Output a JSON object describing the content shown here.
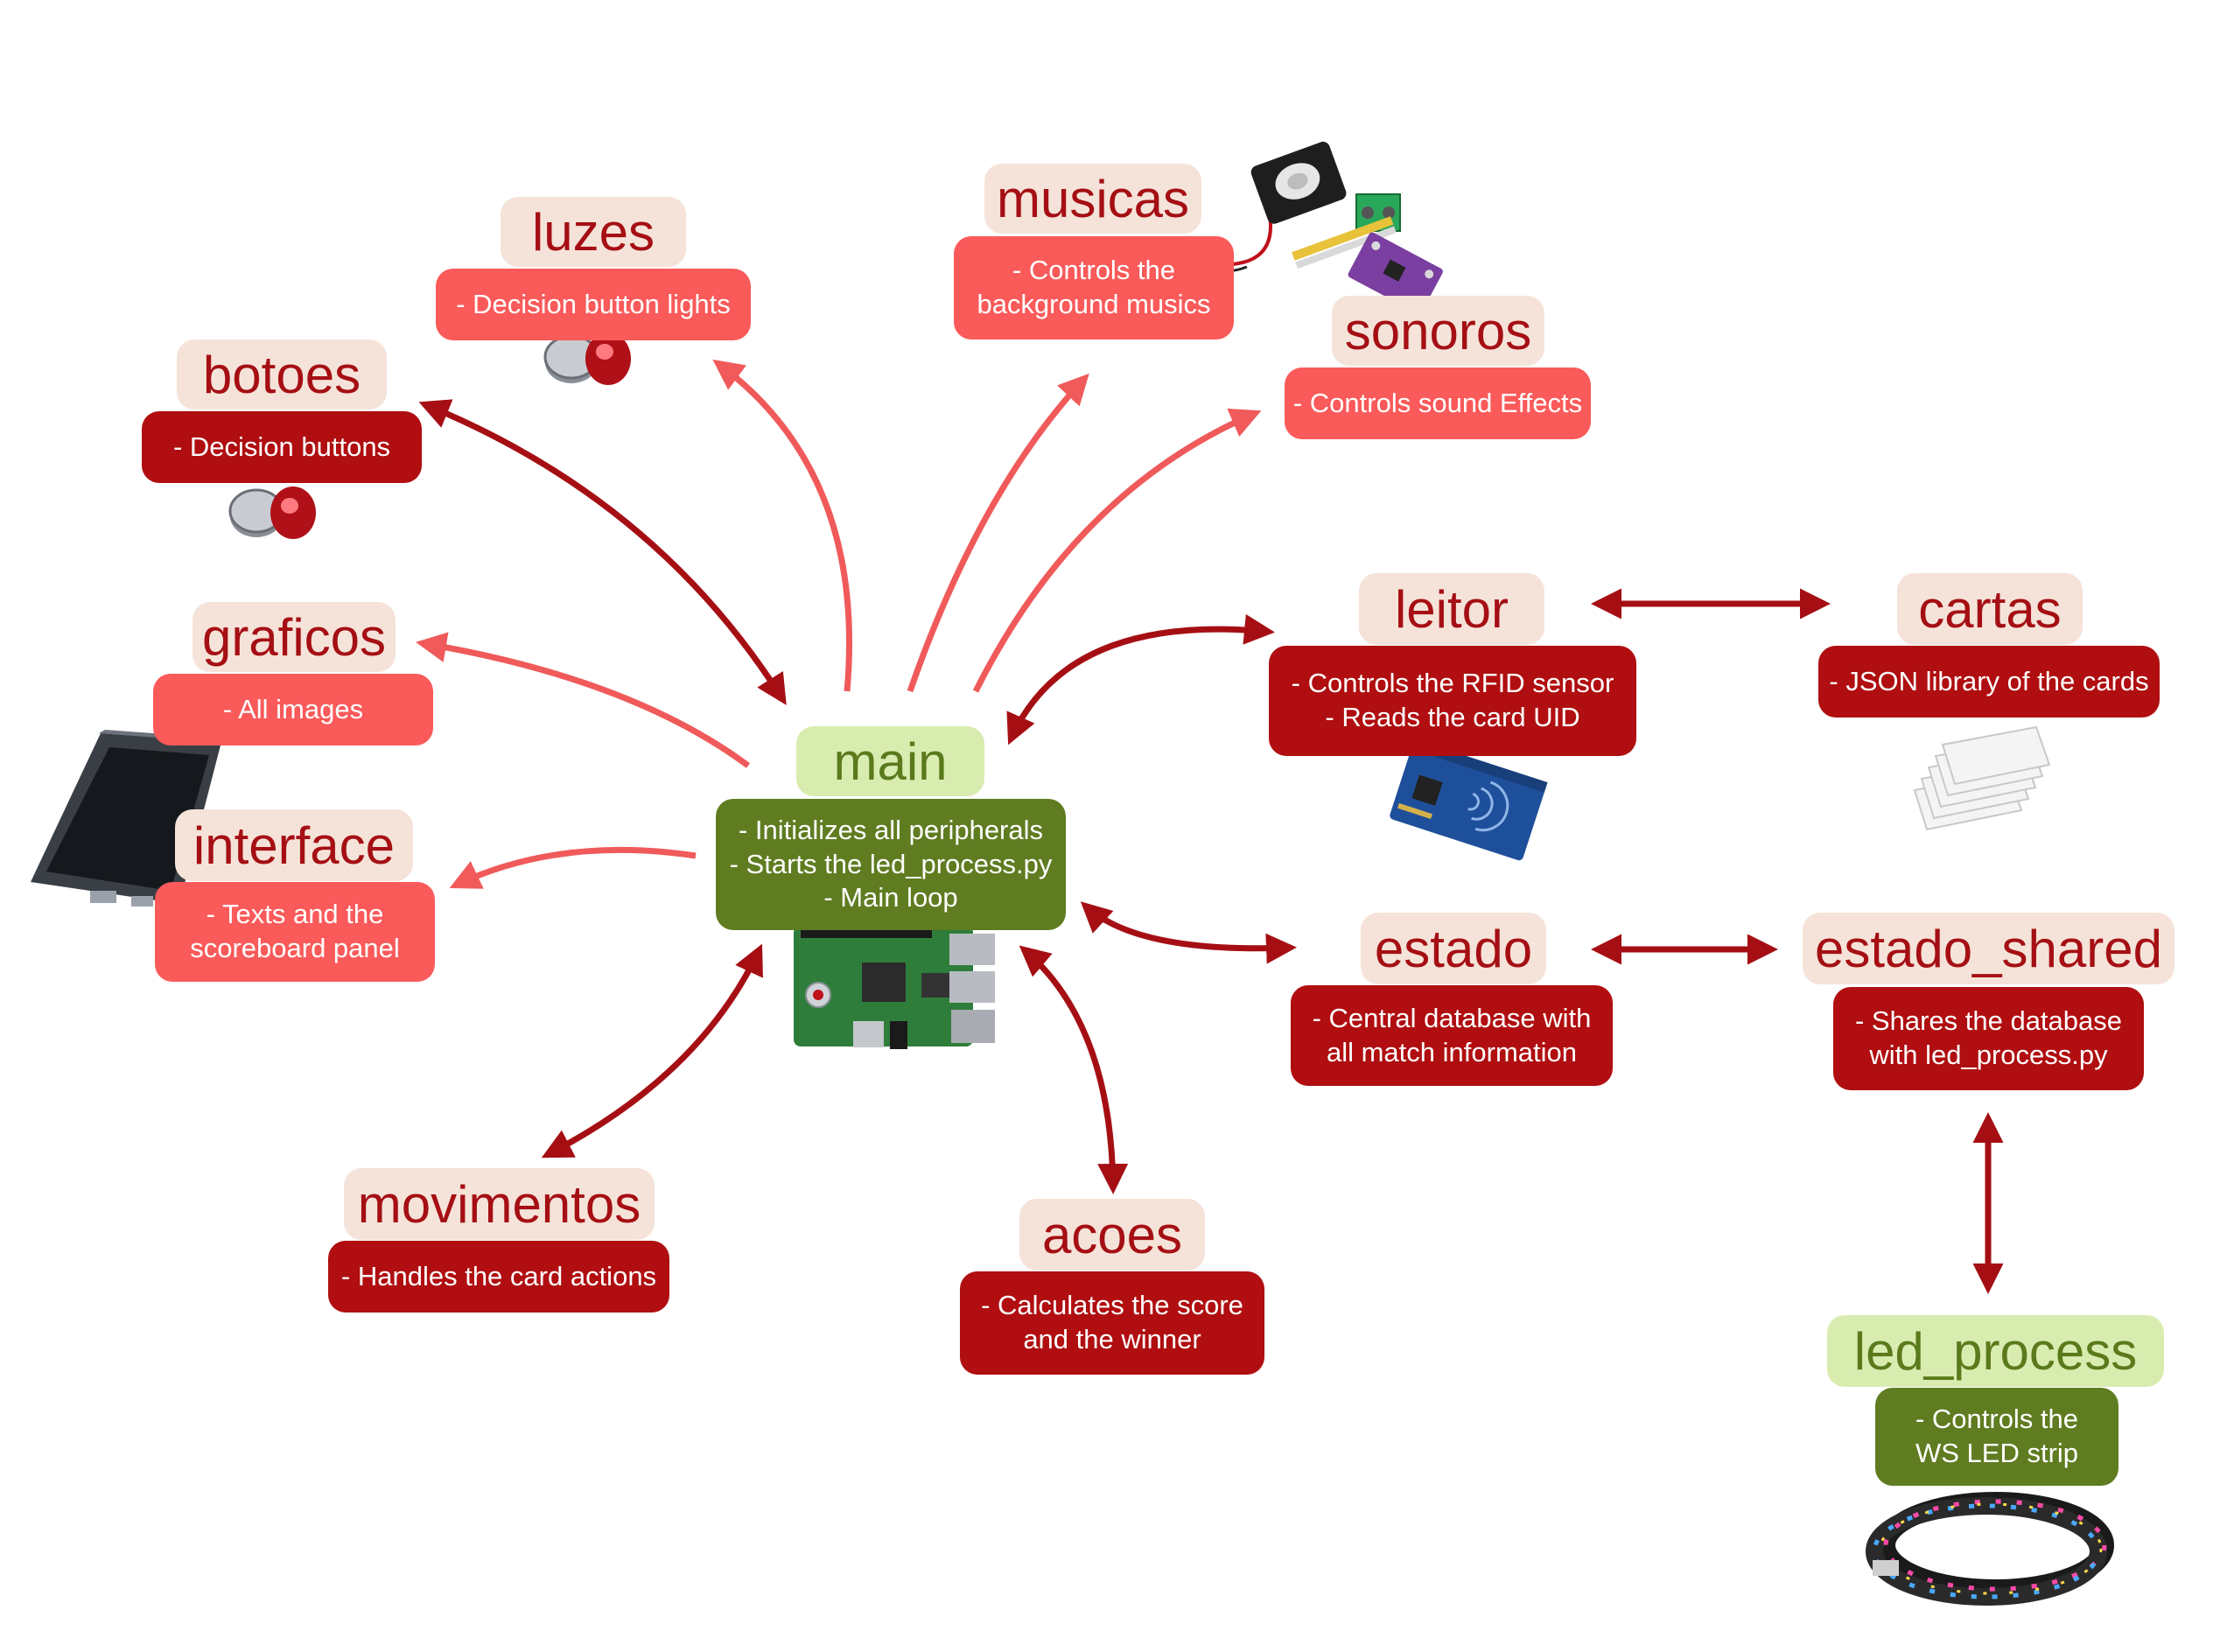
{
  "modules": {
    "main": {
      "title": "main",
      "lines": [
        "- Initializes all peripherals",
        "- Starts the led_process.py",
        "- Main loop"
      ]
    },
    "luzes": {
      "title": "luzes",
      "lines": [
        "- Decision button lights"
      ]
    },
    "musicas": {
      "title": "musicas",
      "lines": [
        "- Controls the",
        "background musics"
      ]
    },
    "sonoros": {
      "title": "sonoros",
      "lines": [
        "- Controls sound Effects"
      ]
    },
    "botoes": {
      "title": "botoes",
      "lines": [
        "- Decision buttons"
      ]
    },
    "graficos": {
      "title": "graficos",
      "lines": [
        "- All images"
      ]
    },
    "interface": {
      "title": "interface",
      "lines": [
        "- Texts and the",
        "scoreboard panel"
      ]
    },
    "leitor": {
      "title": "leitor",
      "lines": [
        "- Controls the RFID sensor",
        "- Reads the card UID"
      ]
    },
    "cartas": {
      "title": "cartas",
      "lines": [
        "- JSON library of the cards"
      ]
    },
    "estado": {
      "title": "estado",
      "lines": [
        "- Central database with",
        "all match information"
      ]
    },
    "estado_shared": {
      "title": "estado_shared",
      "lines": [
        "- Shares the database",
        "with led_process.py"
      ]
    },
    "led_process": {
      "title": "led_process",
      "lines": [
        "- Controls the",
        "WS LED strip"
      ]
    },
    "movimentos": {
      "title": "movimentos",
      "lines": [
        "- Handles the card actions"
      ]
    },
    "acoes": {
      "title": "acoes",
      "lines": [
        "- Calculates the score",
        "and the winner"
      ]
    }
  },
  "colors": {
    "title_bg": "#f5e3d9",
    "title_text": "#a50f14",
    "main_title_bg": "#d9ecb0",
    "main_title_text": "#5a7a1c",
    "desc_light": "#fa5a5a",
    "desc_dark": "#b00e10",
    "desc_green": "#5f7c21",
    "arrow_light": "#f05a5a",
    "arrow_dark": "#a50f14"
  },
  "images": [
    "raspberry-pi-board",
    "push-button",
    "speaker-module",
    "touchscreen-display",
    "rfid-reader",
    "rfid-cards",
    "led-strip"
  ]
}
